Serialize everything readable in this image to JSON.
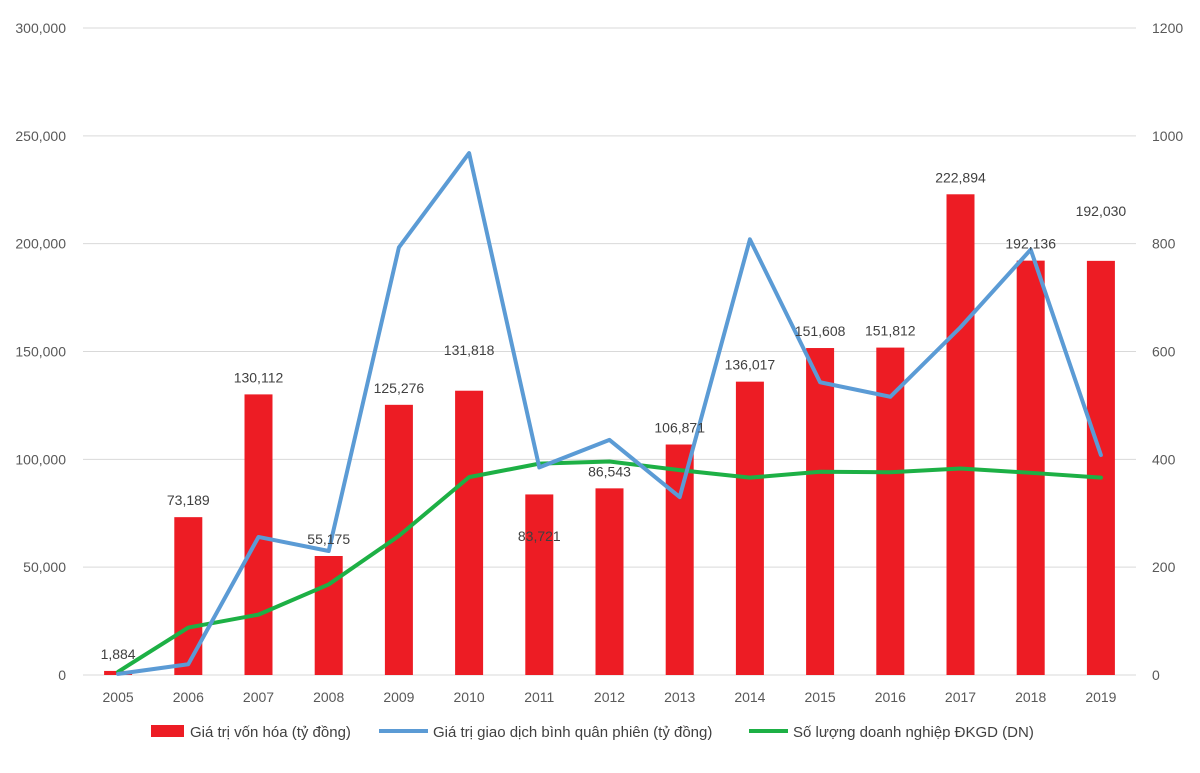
{
  "chart_data": {
    "type": "bar+line",
    "title": "",
    "categories": [
      "2005",
      "2006",
      "2007",
      "2008",
      "2009",
      "2010",
      "2011",
      "2012",
      "2013",
      "2014",
      "2015",
      "2016",
      "2017",
      "2018",
      "2019"
    ],
    "series": [
      {
        "name": "Giá trị vốn hóa (tỷ đồng)",
        "type": "bar",
        "axis": "left",
        "color": "#ed1c24",
        "values": [
          1884,
          73189,
          130112,
          55175,
          125276,
          131818,
          83721,
          86543,
          106871,
          136017,
          151608,
          151812,
          222894,
          192136,
          192030
        ],
        "labels": [
          "1,884",
          "73,189",
          "130,112",
          "55,175",
          "125,276",
          "131,818",
          "83,721",
          "86,543",
          "106,871",
          "136,017",
          "151,608",
          "151,812",
          "222,894",
          "192,136",
          "192,030"
        ]
      },
      {
        "name": "Giá trị giao dịch bình quân phiên (tỷ đồng)",
        "type": "line",
        "axis": "right",
        "color": "#5b9bd5",
        "values": [
          2,
          20,
          256,
          230,
          793,
          968,
          385,
          436,
          330,
          808,
          543,
          516,
          645,
          789,
          408
        ]
      },
      {
        "name": "Số lượng doanh nghiệp ĐKGD (DN)",
        "type": "line",
        "axis": "right",
        "color": "#1db045",
        "values": [
          6,
          88,
          112,
          168,
          258,
          367,
          392,
          396,
          380,
          366,
          377,
          376,
          383,
          375,
          366
        ]
      }
    ],
    "y_left": {
      "min": 0,
      "max": 300000,
      "ticks": [
        0,
        50000,
        100000,
        150000,
        200000,
        250000,
        300000
      ],
      "tick_labels": [
        "0",
        "50,000",
        "100,000",
        "150,000",
        "200,000",
        "250,000",
        "300,000"
      ]
    },
    "y_right": {
      "min": 0,
      "max": 1200,
      "ticks": [
        0,
        200,
        400,
        600,
        800,
        1000,
        1200
      ],
      "tick_labels": [
        "0",
        "200",
        "400",
        "600",
        "800",
        "1000",
        "1200"
      ]
    },
    "grid": true,
    "legend_position": "bottom"
  }
}
